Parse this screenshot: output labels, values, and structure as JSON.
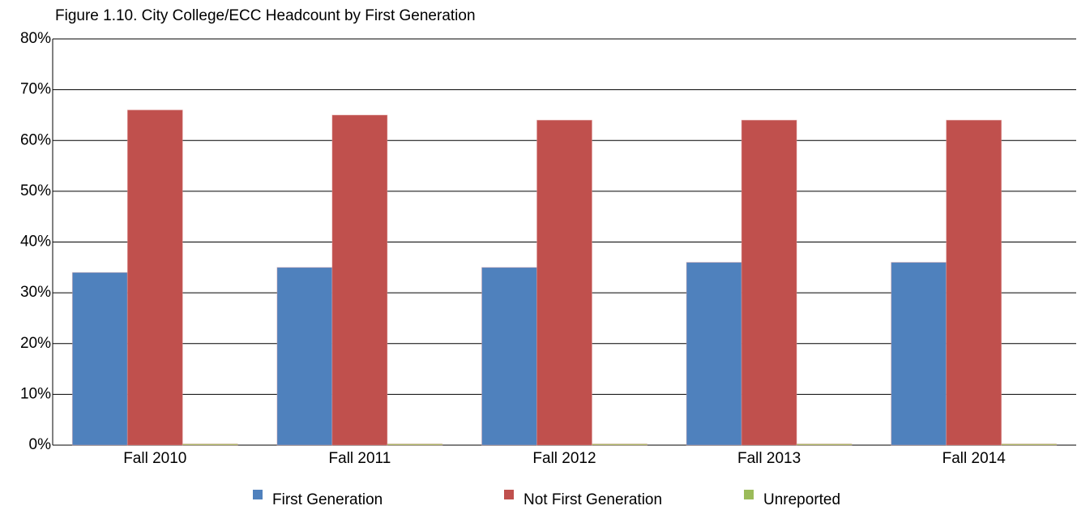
{
  "chart_data": {
    "type": "bar",
    "title": "Figure 1.10. City College/ECC Headcount by First Generation",
    "categories": [
      "Fall 2010",
      "Fall 2011",
      "Fall 2012",
      "Fall 2013",
      "Fall 2014"
    ],
    "series": [
      {
        "name": "First Generation",
        "color": "#4f81bd",
        "values": [
          34,
          35,
          35,
          36,
          36
        ]
      },
      {
        "name": "Not First Generation",
        "color": "#c0504d",
        "values": [
          66,
          65,
          64,
          64,
          64
        ]
      },
      {
        "name": "Unreported",
        "color": "#9bbb59",
        "values": [
          0,
          0,
          0,
          0,
          0
        ]
      }
    ],
    "ylim": [
      0,
      80
    ],
    "yticks": [
      {
        "value": 0,
        "label": "0%"
      },
      {
        "value": 10,
        "label": "10%"
      },
      {
        "value": 20,
        "label": "20%"
      },
      {
        "value": 30,
        "label": "30%"
      },
      {
        "value": 40,
        "label": "40%"
      },
      {
        "value": 50,
        "label": "50%"
      },
      {
        "value": 60,
        "label": "60%"
      },
      {
        "value": 70,
        "label": "70%"
      },
      {
        "value": 80,
        "label": "80%"
      }
    ],
    "grid": true,
    "legend": "bottom"
  }
}
